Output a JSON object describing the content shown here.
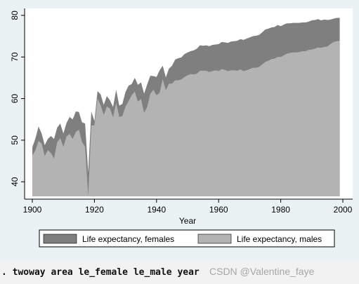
{
  "console": {
    "command": ". twoway area le_female le_male year"
  },
  "watermark": "CSDN @Valentine_faye",
  "colors": {
    "females": "#7f7f7f",
    "males": "#b3b3b3",
    "outer_background": "#eaf2f3",
    "plot_background": "#ffffff"
  },
  "chart_data": {
    "type": "area",
    "title": "",
    "xlabel": "Year",
    "ylabel": "",
    "xlim": [
      1900,
      2000
    ],
    "ylim": [
      36.5,
      81
    ],
    "xticks": [
      1900,
      1920,
      1940,
      1960,
      1980,
      2000
    ],
    "yticks": [
      40,
      50,
      60,
      70,
      80
    ],
    "grid": false,
    "legend_position": "bottom",
    "x": [
      1900,
      1901,
      1902,
      1903,
      1904,
      1905,
      1906,
      1907,
      1908,
      1909,
      1910,
      1911,
      1912,
      1913,
      1914,
      1915,
      1916,
      1917,
      1918,
      1919,
      1920,
      1921,
      1922,
      1923,
      1924,
      1925,
      1926,
      1927,
      1928,
      1929,
      1930,
      1931,
      1932,
      1933,
      1934,
      1935,
      1936,
      1937,
      1938,
      1939,
      1940,
      1941,
      1942,
      1943,
      1944,
      1945,
      1946,
      1947,
      1948,
      1949,
      1950,
      1951,
      1952,
      1953,
      1954,
      1955,
      1956,
      1957,
      1958,
      1959,
      1960,
      1961,
      1962,
      1963,
      1964,
      1965,
      1966,
      1967,
      1968,
      1969,
      1970,
      1971,
      1972,
      1973,
      1974,
      1975,
      1976,
      1977,
      1978,
      1979,
      1980,
      1981,
      1982,
      1983,
      1984,
      1985,
      1986,
      1987,
      1988,
      1989,
      1990,
      1991,
      1992,
      1993,
      1994,
      1995,
      1996,
      1997,
      1998,
      1999
    ],
    "series": [
      {
        "name": "Life expectancy, females",
        "color": "#7f7f7f",
        "values": [
          48.3,
          50.4,
          53.3,
          51.6,
          48.8,
          50.3,
          51.0,
          50.3,
          53.0,
          54.0,
          51.6,
          54.1,
          55.6,
          55.0,
          56.9,
          56.8,
          54.3,
          54.0,
          42.2,
          56.9,
          54.6,
          61.8,
          61.0,
          58.5,
          60.6,
          59.6,
          58.0,
          62.1,
          58.3,
          58.7,
          61.6,
          63.1,
          63.5,
          65.0,
          63.3,
          63.9,
          61.2,
          63.4,
          65.5,
          65.4,
          65.2,
          66.8,
          67.9,
          65.1,
          67.2,
          67.9,
          69.4,
          69.7,
          69.9,
          70.7,
          71.1,
          71.4,
          71.6,
          72.0,
          72.8,
          72.7,
          72.8,
          72.6,
          72.9,
          73.0,
          73.1,
          73.6,
          73.5,
          73.4,
          73.7,
          73.8,
          73.9,
          74.3,
          74.1,
          74.4,
          74.7,
          75.0,
          75.1,
          75.3,
          75.9,
          76.6,
          76.8,
          77.1,
          77.2,
          77.7,
          77.4,
          77.8,
          78.1,
          78.1,
          78.2,
          78.2,
          78.2,
          78.3,
          78.3,
          78.5,
          78.8,
          78.9,
          79.1,
          78.8,
          79.0,
          78.9,
          79.0,
          79.2,
          79.4,
          79.4
        ]
      },
      {
        "name": "Life expectancy, males",
        "color": "#b3b3b3",
        "values": [
          46.3,
          47.6,
          49.8,
          49.2,
          46.2,
          47.6,
          46.9,
          45.6,
          49.5,
          50.5,
          48.4,
          50.9,
          51.5,
          50.3,
          52.0,
          52.5,
          49.6,
          48.4,
          36.6,
          53.5,
          53.6,
          60.0,
          58.4,
          56.1,
          58.1,
          57.6,
          55.5,
          59.0,
          55.6,
          55.8,
          58.1,
          59.4,
          60.8,
          61.7,
          59.3,
          59.9,
          56.6,
          58.0,
          61.2,
          62.1,
          60.8,
          61.4,
          64.7,
          62.0,
          63.6,
          63.6,
          64.4,
          64.4,
          64.6,
          65.2,
          65.6,
          65.9,
          65.8,
          66.0,
          66.7,
          66.7,
          66.7,
          66.4,
          66.6,
          66.8,
          66.6,
          67.1,
          66.9,
          66.6,
          66.8,
          66.8,
          66.7,
          67.0,
          66.6,
          66.8,
          67.1,
          67.4,
          67.4,
          67.6,
          68.2,
          68.8,
          69.1,
          69.5,
          69.6,
          70.0,
          70.0,
          70.4,
          70.8,
          71.0,
          71.1,
          71.1,
          71.2,
          71.4,
          71.4,
          71.7,
          71.8,
          72.0,
          72.3,
          72.2,
          72.4,
          72.5,
          73.1,
          73.6,
          73.8,
          73.9
        ]
      }
    ]
  }
}
